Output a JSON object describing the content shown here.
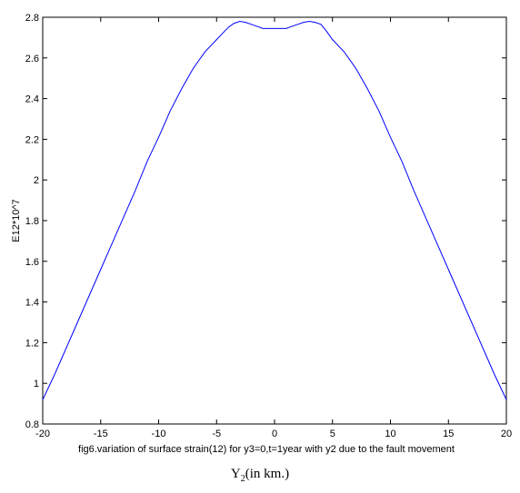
{
  "chart_data": {
    "type": "line",
    "title": "",
    "caption": "fig6.variation of surface strain(12) for y3=0,t=1year with y2 due to the fault movement",
    "xlabel_main": "Y",
    "xlabel_sub": "2",
    "xlabel_rest": "(in km.)",
    "ylabel": "E12*10^7",
    "xlim": [
      -20,
      20
    ],
    "ylim": [
      0.8,
      2.8
    ],
    "xticks": [
      -20,
      -15,
      -10,
      -5,
      0,
      5,
      10,
      15,
      20
    ],
    "yticks": [
      0.8,
      1,
      1.2,
      1.4,
      1.6,
      1.8,
      2,
      2.2,
      2.4,
      2.6,
      2.8
    ],
    "grid": false,
    "line_color": "#0000ff",
    "series": [
      {
        "x": [
          -20,
          -19,
          -18,
          -17,
          -16,
          -15,
          -14,
          -13,
          -12,
          -11,
          -10,
          -9,
          -8,
          -7,
          -6,
          -5,
          -4.5,
          -4,
          -3.5,
          -3,
          -2.5,
          -2,
          -1.5,
          -1,
          0,
          1,
          1.5,
          2,
          2.5,
          3,
          3.5,
          4,
          4.5,
          5,
          6,
          7,
          8,
          9,
          10,
          11,
          12,
          13,
          14,
          15,
          16,
          17,
          18,
          19,
          20
        ],
        "y": [
          0.92,
          1.04,
          1.17,
          1.3,
          1.43,
          1.56,
          1.69,
          1.82,
          1.95,
          2.09,
          2.21,
          2.34,
          2.45,
          2.55,
          2.63,
          2.69,
          2.72,
          2.75,
          2.77,
          2.78,
          2.775,
          2.765,
          2.755,
          2.745,
          2.745,
          2.745,
          2.755,
          2.765,
          2.775,
          2.78,
          2.775,
          2.765,
          2.73,
          2.69,
          2.63,
          2.55,
          2.45,
          2.34,
          2.21,
          2.09,
          1.95,
          1.82,
          1.69,
          1.56,
          1.43,
          1.3,
          1.17,
          1.04,
          0.92
        ]
      }
    ]
  }
}
